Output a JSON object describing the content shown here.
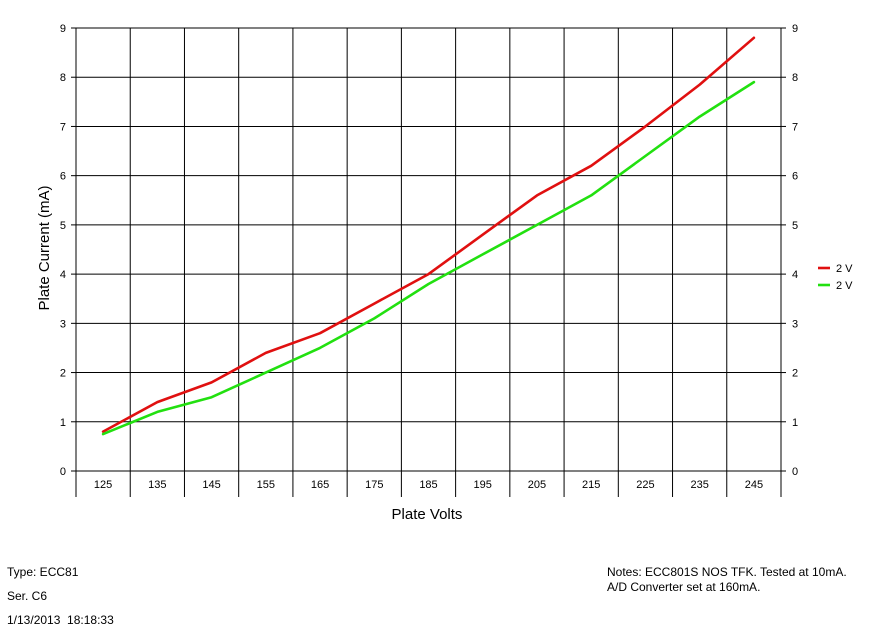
{
  "chart_data": {
    "type": "line",
    "xlabel": "Plate Volts",
    "ylabel": "Plate Current (mA)",
    "categories": [
      "125",
      "135",
      "145",
      "155",
      "165",
      "175",
      "185",
      "195",
      "205",
      "215",
      "225",
      "235",
      "245"
    ],
    "xlim": [
      120,
      250
    ],
    "ylim": [
      0,
      9
    ],
    "yticks": [
      0,
      1,
      2,
      3,
      4,
      5,
      6,
      7,
      8,
      9
    ],
    "grid": true,
    "legend_position": "right",
    "series": [
      {
        "name": "2 V",
        "color": "#e01010",
        "x": [
          125,
          135,
          145,
          155,
          165,
          175,
          185,
          195,
          205,
          215,
          225,
          235,
          245
        ],
        "values": [
          0.8,
          1.4,
          1.8,
          2.4,
          2.8,
          3.4,
          4.0,
          4.8,
          5.6,
          6.2,
          7.0,
          7.85,
          8.8
        ]
      },
      {
        "name": "2 V",
        "color": "#22e010",
        "x": [
          125,
          135,
          145,
          155,
          165,
          175,
          185,
          195,
          205,
          215,
          225,
          235,
          245
        ],
        "values": [
          0.75,
          1.2,
          1.5,
          2.0,
          2.5,
          3.1,
          3.8,
          4.4,
          5.0,
          5.6,
          6.4,
          7.2,
          7.9
        ]
      }
    ]
  },
  "info": {
    "type": "Type: ECC81",
    "ser": "Ser. C6",
    "datetime": "1/13/2013  18:18:33",
    "notes": "Notes: ECC801S NOS TFK. Tested at 10mA.",
    "notes2": "A/D Converter set at 160mA."
  }
}
